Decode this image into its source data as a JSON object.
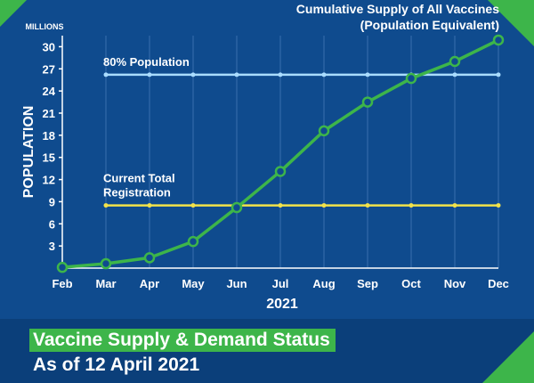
{
  "footer": {
    "title": "Vaccine Supply & Demand Status",
    "subtitle": "As of 12 April 2021"
  },
  "chart_data": {
    "type": "line",
    "unit_label": "MILLIONS",
    "ylabel": "POPULATION",
    "xlabel": "2021",
    "x": [
      "Feb",
      "Mar",
      "Apr",
      "May",
      "Jun",
      "Jul",
      "Aug",
      "Sep",
      "Oct",
      "Nov",
      "Dec"
    ],
    "ylim": [
      0,
      31.5
    ],
    "yticks": [
      3,
      6,
      9,
      12,
      15,
      18,
      21,
      24,
      27,
      30
    ],
    "grid": "vertical",
    "series": [
      {
        "name": "Cumulative Supply of All Vaccines (Population Equivalent)",
        "label_lines": [
          "Cumulative Supply of All Vaccines",
          "(Population Equivalent)"
        ],
        "values": [
          0.1,
          0.6,
          1.4,
          3.6,
          8.2,
          13.1,
          18.6,
          22.5,
          25.7,
          28.0,
          30.9
        ],
        "color": "#3db54a"
      }
    ],
    "reference_lines": [
      {
        "label": "80% Population",
        "label_lines": [
          "80% Population"
        ],
        "value": 26.2,
        "color": "#a9dcff"
      },
      {
        "label": "Current Total Registration",
        "label_lines": [
          "Current Total",
          "Registration"
        ],
        "value": 8.5,
        "color": "#f2e24a"
      }
    ]
  },
  "colors": {
    "background": "#0f4b8e",
    "accent": "#3db54a",
    "text": "#ffffff"
  }
}
